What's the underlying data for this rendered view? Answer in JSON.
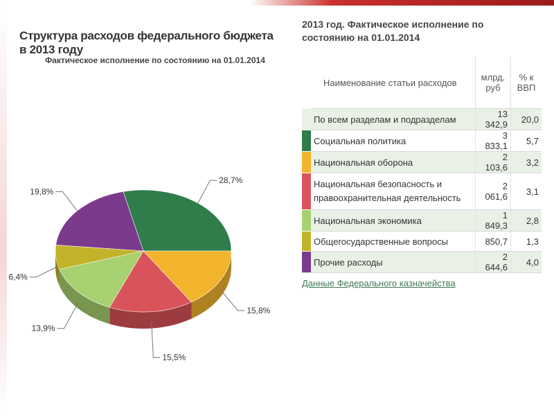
{
  "chart_data": {
    "type": "pie",
    "title": "Структура расходов федерального бюджета в 2013 году",
    "subtitle": "Фактическое исполнение по состоянию на 01.01.2014",
    "slices": [
      {
        "label": "28,7%",
        "value": 28.7,
        "color": "#2e7d4a"
      },
      {
        "label": "19,8%",
        "value": 19.8,
        "color": "#7b3b8c"
      },
      {
        "label": "6,4%",
        "value": 6.4,
        "color": "#c2b32a"
      },
      {
        "label": "13,9%",
        "value": 13.9,
        "color": "#a8d16f"
      },
      {
        "label": "15,5%",
        "value": 15.5,
        "color": "#d9545a"
      },
      {
        "label": "15,8%",
        "value": 15.8,
        "color": "#f2b42d"
      }
    ]
  },
  "table": {
    "title": "2013 год. Фактическое исполнение по состоянию на 01.01.2014",
    "headers": {
      "name": "Наименование статьи расходов",
      "amount": "млрд. руб",
      "gdp": "% к ВВП"
    },
    "total": {
      "name": "По всем разделам и подразделам",
      "amount": "13 342,9",
      "gdp": "20,0"
    },
    "rows": [
      {
        "name": "Социальная политика",
        "amount": "3 833,1",
        "gdp": "5,7",
        "color": "#2e7d4a"
      },
      {
        "name": "Национальная оборона",
        "amount": "2 103,6",
        "gdp": "3,2",
        "color": "#f2b42d"
      },
      {
        "name": "Национальная безопасность и правоохранительная деятельность",
        "amount": "2 061,6",
        "gdp": "3,1",
        "color": "#d9545a"
      },
      {
        "name": "Национальная экономика",
        "amount": "1 849,3",
        "gdp": "2,8",
        "color": "#a8d16f"
      },
      {
        "name": "Общегосударственные вопросы",
        "amount": "850,7",
        "gdp": "1,3",
        "color": "#c2b32a"
      },
      {
        "name": "Прочие расходы",
        "amount": "2 644,6",
        "gdp": "4,0",
        "color": "#7b3b8c"
      }
    ],
    "source": "Данные Федерального казначейства"
  }
}
